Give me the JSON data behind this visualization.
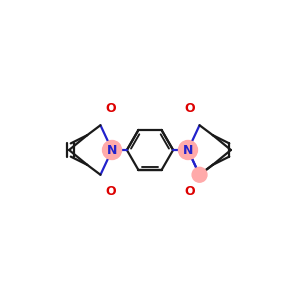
{
  "bg_color": "#ffffff",
  "bond_color": "#1a1a1a",
  "N_color": "#2222cc",
  "O_color": "#dd0000",
  "N_highlight": "#ffaaaa",
  "C_highlight": "#ffaaaa",
  "lw": 1.6,
  "figsize": [
    3.0,
    3.0
  ],
  "dpi": 100,
  "xlim": [
    -1.8,
    1.8
  ],
  "ylim": [
    -1.0,
    1.0
  ]
}
